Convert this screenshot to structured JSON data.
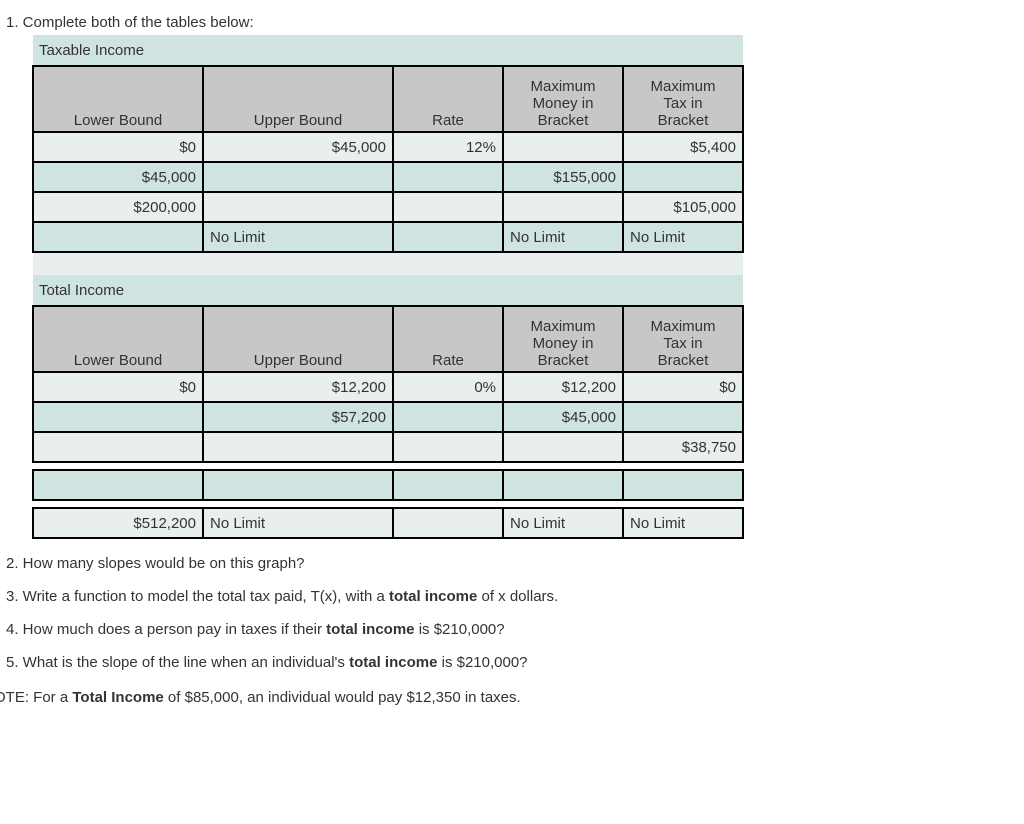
{
  "q1": "1. Complete both of the tables below:",
  "table1": {
    "title": "Taxable Income",
    "headers": {
      "lower": "Lower Bound",
      "upper": "Upper Bound",
      "rate": "Rate",
      "maxMoney1": "Maximum",
      "maxMoney2": "Money in",
      "maxMoney3": "Bracket",
      "maxTax1": "Maximum",
      "maxTax2": "Tax in",
      "maxTax3": "Bracket"
    },
    "rows": [
      {
        "lower": "$0",
        "upper": "$45,000",
        "rate": "12%",
        "maxMoney": "",
        "maxTax": "$5,400",
        "lowerAlign": "r",
        "upperAlign": "r",
        "rateAlign": "r",
        "moneyAlign": "r",
        "taxAlign": "r"
      },
      {
        "lower": "$45,000",
        "upper": "",
        "rate": "",
        "maxMoney": "$155,000",
        "maxTax": "",
        "lowerAlign": "r",
        "upperAlign": "r",
        "rateAlign": "r",
        "moneyAlign": "r",
        "taxAlign": "r"
      },
      {
        "lower": "$200,000",
        "upper": "",
        "rate": "",
        "maxMoney": "",
        "maxTax": "$105,000",
        "lowerAlign": "r",
        "upperAlign": "r",
        "rateAlign": "r",
        "moneyAlign": "r",
        "taxAlign": "r"
      },
      {
        "lower": "",
        "upper": "No Limit",
        "rate": "",
        "maxMoney": "No Limit",
        "maxTax": "No Limit",
        "lowerAlign": "l",
        "upperAlign": "l",
        "rateAlign": "l",
        "moneyAlign": "l",
        "taxAlign": "l"
      }
    ]
  },
  "table2": {
    "title": "Total Income",
    "headers": {
      "lower": "Lower Bound",
      "upper": "Upper Bound",
      "rate": "Rate",
      "maxMoney1": "Maximum",
      "maxMoney2": "Money in",
      "maxMoney3": "Bracket",
      "maxTax1": "Maximum",
      "maxTax2": "Tax in",
      "maxTax3": "Bracket"
    },
    "rows": [
      {
        "lower": "$0",
        "upper": "$12,200",
        "rate": "0%",
        "maxMoney": "$12,200",
        "maxTax": "$0",
        "lowerAlign": "r",
        "upperAlign": "r",
        "rateAlign": "r",
        "moneyAlign": "r",
        "taxAlign": "r"
      },
      {
        "lower": "",
        "upper": "$57,200",
        "rate": "",
        "maxMoney": "$45,000",
        "maxTax": "",
        "lowerAlign": "r",
        "upperAlign": "r",
        "rateAlign": "r",
        "moneyAlign": "r",
        "taxAlign": "r"
      },
      {
        "lower": "",
        "upper": "",
        "rate": "",
        "maxMoney": "",
        "maxTax": "$38,750",
        "lowerAlign": "r",
        "upperAlign": "r",
        "rateAlign": "r",
        "moneyAlign": "r",
        "taxAlign": "r"
      },
      {
        "lower": "",
        "upper": "",
        "rate": "",
        "maxMoney": "",
        "maxTax": "",
        "lowerAlign": "r",
        "upperAlign": "r",
        "rateAlign": "r",
        "moneyAlign": "r",
        "taxAlign": "r"
      },
      {
        "lower": "$512,200",
        "upper": "No Limit",
        "rate": "",
        "maxMoney": "No Limit",
        "maxTax": "No Limit",
        "lowerAlign": "r",
        "upperAlign": "l",
        "rateAlign": "l",
        "moneyAlign": "l",
        "taxAlign": "l"
      }
    ]
  },
  "q2": "2. How many slopes would be on this graph?",
  "q3a": "3. Write a function to model the total tax paid, T(x), with a ",
  "q3b": "total income",
  "q3c": " of x dollars.",
  "q4a": "4. How much does a person pay in taxes if their ",
  "q4b": "total income",
  "q4c": " is $210,000?",
  "q5a": "5. What is the slope of the line when an individual's ",
  "q5b": "total income",
  "q5c": " is $210,000?",
  "note1": "OTE: For a ",
  "note2": "Total Income",
  "note3": " of $85,000, an individual would pay $12,350 in taxes."
}
